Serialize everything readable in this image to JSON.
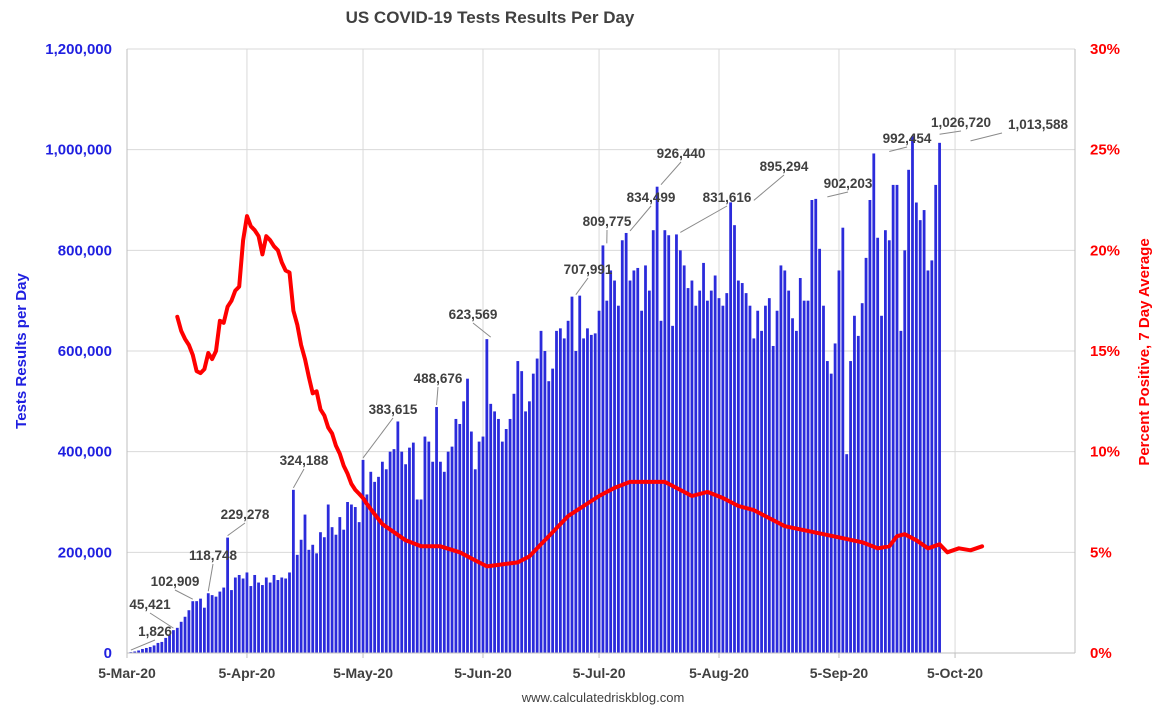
{
  "chart_data": {
    "type": "bar",
    "title": "US COVID-19 Tests Results Per Day",
    "ylabel": "Tests Results per Day",
    "y2label": "Percent Positive, 7 Day Average",
    "source": "www.calculatedriskblog.com",
    "ylim": [
      0,
      1200000
    ],
    "y2lim": [
      0,
      30
    ],
    "x_range": [
      "2020-03-05",
      "2020-11-05"
    ],
    "x_ticks": [
      "5-Mar-20",
      "5-Apr-20",
      "5-May-20",
      "5-Jun-20",
      "5-Jul-20",
      "5-Aug-20",
      "5-Sep-20",
      "5-Oct-20"
    ],
    "y_ticks": [
      "0",
      "200,000",
      "400,000",
      "600,000",
      "800,000",
      "1,000,000",
      "1,200,000"
    ],
    "y2_ticks": [
      "0%",
      "5%",
      "10%",
      "15%",
      "20%",
      "25%",
      "30%"
    ],
    "grid": true,
    "colors": {
      "bars": "#2b2bdb",
      "line": "#ff0000",
      "left_axis": "#1f1fe0",
      "right_axis": "#ff0000"
    },
    "series": [
      {
        "name": "Tests Results per Day",
        "kind": "bar",
        "start_date": "2020-03-06",
        "values": [
          1826,
          3000,
          5000,
          8000,
          10000,
          12000,
          15000,
          20000,
          22000,
          30000,
          36000,
          45421,
          50000,
          62000,
          72000,
          85000,
          102909,
          103000,
          108000,
          90000,
          118748,
          115000,
          112000,
          122000,
          130000,
          229278,
          125000,
          150000,
          155000,
          148000,
          160000,
          133000,
          155000,
          140000,
          135000,
          150000,
          140000,
          155000,
          145000,
          150000,
          148000,
          160000,
          324188,
          195000,
          225000,
          275000,
          205000,
          215000,
          198000,
          240000,
          230000,
          295000,
          250000,
          235000,
          270000,
          245000,
          300000,
          295000,
          290000,
          260000,
          383615,
          315000,
          360000,
          340000,
          350000,
          380000,
          365000,
          400000,
          405000,
          460000,
          400000,
          375000,
          408000,
          418000,
          305000,
          305000,
          430000,
          420000,
          380000,
          488676,
          380000,
          360000,
          400000,
          410000,
          465000,
          455000,
          500000,
          545000,
          440000,
          365000,
          420000,
          430000,
          623569,
          495000,
          480000,
          465000,
          420000,
          445000,
          465000,
          515000,
          580000,
          560000,
          480000,
          500000,
          555000,
          585000,
          640000,
          600000,
          540000,
          565000,
          640000,
          645000,
          625000,
          660000,
          707991,
          600000,
          710000,
          625000,
          645000,
          632000,
          635000,
          680000,
          809775,
          700000,
          760000,
          740000,
          690000,
          820000,
          834499,
          740000,
          760000,
          765000,
          680000,
          770000,
          720000,
          840000,
          926440,
          660000,
          840000,
          830000,
          650000,
          831616,
          800000,
          770000,
          725000,
          740000,
          690000,
          720000,
          775000,
          700000,
          720000,
          750000,
          705000,
          690000,
          715000,
          895294,
          850000,
          740000,
          735000,
          715000,
          690000,
          625000,
          680000,
          640000,
          690000,
          705000,
          610000,
          680000,
          770000,
          760000,
          720000,
          665000,
          640000,
          745000,
          700000,
          700000,
          900000,
          902203,
          803000,
          690000,
          580000,
          555000,
          615000,
          760000,
          845000,
          395000,
          580000,
          670000,
          630000,
          695000,
          785000,
          900000,
          992454,
          825000,
          670000,
          840000,
          820000,
          930000,
          930000,
          640000,
          800000,
          960000,
          1026720,
          895000,
          860000,
          880000,
          760000,
          780000,
          930000,
          1013588
        ]
      },
      {
        "name": "Percent Positive, 7 Day Average",
        "kind": "line",
        "axis": "right",
        "points": [
          [
            "2020-03-18",
            16.7
          ],
          [
            "2020-03-19",
            16.0
          ],
          [
            "2020-03-20",
            15.6
          ],
          [
            "2020-03-21",
            15.3
          ],
          [
            "2020-03-22",
            14.8
          ],
          [
            "2020-03-23",
            14.0
          ],
          [
            "2020-03-24",
            13.9
          ],
          [
            "2020-03-25",
            14.1
          ],
          [
            "2020-03-26",
            14.9
          ],
          [
            "2020-03-27",
            14.6
          ],
          [
            "2020-03-28",
            15.0
          ],
          [
            "2020-03-29",
            16.5
          ],
          [
            "2020-03-30",
            16.4
          ],
          [
            "2020-03-31",
            17.2
          ],
          [
            "2020-04-01",
            17.5
          ],
          [
            "2020-04-02",
            18.0
          ],
          [
            "2020-04-03",
            18.2
          ],
          [
            "2020-04-04",
            20.5
          ],
          [
            "2020-04-05",
            21.7
          ],
          [
            "2020-04-06",
            21.2
          ],
          [
            "2020-04-07",
            21.0
          ],
          [
            "2020-04-08",
            20.7
          ],
          [
            "2020-04-09",
            19.8
          ],
          [
            "2020-04-10",
            20.7
          ],
          [
            "2020-04-11",
            20.5
          ],
          [
            "2020-04-12",
            20.2
          ],
          [
            "2020-04-13",
            20.0
          ],
          [
            "2020-04-14",
            19.4
          ],
          [
            "2020-04-15",
            19.0
          ],
          [
            "2020-04-16",
            18.9
          ],
          [
            "2020-04-17",
            17.0
          ],
          [
            "2020-04-18",
            16.3
          ],
          [
            "2020-04-19",
            15.3
          ],
          [
            "2020-04-20",
            14.6
          ],
          [
            "2020-04-21",
            13.7
          ],
          [
            "2020-04-22",
            12.9
          ],
          [
            "2020-04-23",
            13.0
          ],
          [
            "2020-04-24",
            12.1
          ],
          [
            "2020-04-25",
            11.8
          ],
          [
            "2020-04-26",
            11.2
          ],
          [
            "2020-04-27",
            10.9
          ],
          [
            "2020-04-28",
            10.3
          ],
          [
            "2020-04-29",
            9.9
          ],
          [
            "2020-04-30",
            9.3
          ],
          [
            "2020-05-01",
            8.9
          ],
          [
            "2020-05-02",
            8.4
          ],
          [
            "2020-05-03",
            8.1
          ],
          [
            "2020-05-04",
            7.9
          ],
          [
            "2020-05-05",
            7.7
          ],
          [
            "2020-05-06",
            7.4
          ],
          [
            "2020-05-08",
            6.9
          ],
          [
            "2020-05-10",
            6.4
          ],
          [
            "2020-05-13",
            6.0
          ],
          [
            "2020-05-16",
            5.6
          ],
          [
            "2020-05-20",
            5.3
          ],
          [
            "2020-05-25",
            5.3
          ],
          [
            "2020-05-30",
            5.0
          ],
          [
            "2020-06-03",
            4.6
          ],
          [
            "2020-06-06",
            4.3
          ],
          [
            "2020-06-10",
            4.4
          ],
          [
            "2020-06-14",
            4.5
          ],
          [
            "2020-06-17",
            4.8
          ],
          [
            "2020-06-20",
            5.4
          ],
          [
            "2020-06-23",
            6.0
          ],
          [
            "2020-06-27",
            6.8
          ],
          [
            "2020-07-01",
            7.3
          ],
          [
            "2020-07-05",
            7.8
          ],
          [
            "2020-07-09",
            8.2
          ],
          [
            "2020-07-13",
            8.5
          ],
          [
            "2020-07-18",
            8.5
          ],
          [
            "2020-07-22",
            8.5
          ],
          [
            "2020-07-26",
            8.1
          ],
          [
            "2020-07-29",
            7.8
          ],
          [
            "2020-08-02",
            8.0
          ],
          [
            "2020-08-06",
            7.7
          ],
          [
            "2020-08-10",
            7.3
          ],
          [
            "2020-08-14",
            7.1
          ],
          [
            "2020-08-18",
            6.7
          ],
          [
            "2020-08-22",
            6.3
          ],
          [
            "2020-08-27",
            6.1
          ],
          [
            "2020-09-01",
            5.9
          ],
          [
            "2020-09-06",
            5.7
          ],
          [
            "2020-09-11",
            5.5
          ],
          [
            "2020-09-15",
            5.2
          ],
          [
            "2020-09-18",
            5.3
          ],
          [
            "2020-09-20",
            5.8
          ],
          [
            "2020-09-22",
            5.9
          ],
          [
            "2020-09-25",
            5.6
          ],
          [
            "2020-09-28",
            5.2
          ],
          [
            "2020-10-01",
            5.4
          ],
          [
            "2020-10-03",
            5.0
          ],
          [
            "2020-10-06",
            5.2
          ],
          [
            "2020-10-09",
            5.1
          ],
          [
            "2020-10-12",
            5.3
          ]
        ]
      }
    ],
    "data_labels": [
      {
        "text": "1,826",
        "date": "2020-03-06",
        "value": 1826
      },
      {
        "text": "45,421",
        "date": "2020-03-17",
        "value": 45421
      },
      {
        "text": "102,909",
        "date": "2020-03-22",
        "value": 102909
      },
      {
        "text": "118,748",
        "date": "2020-03-26",
        "value": 118748
      },
      {
        "text": "229,278",
        "date": "2020-03-31",
        "value": 229278
      },
      {
        "text": "324,188",
        "date": "2020-04-17",
        "value": 324188
      },
      {
        "text": "383,615",
        "date": "2020-05-05",
        "value": 383615
      },
      {
        "text": "488,676",
        "date": "2020-05-24",
        "value": 488676
      },
      {
        "text": "623,569",
        "date": "2020-06-07",
        "value": 623569
      },
      {
        "text": "707,991",
        "date": "2020-06-29",
        "value": 707991
      },
      {
        "text": "809,775",
        "date": "2020-07-07",
        "value": 809775
      },
      {
        "text": "834,499",
        "date": "2020-07-13",
        "value": 834499
      },
      {
        "text": "926,440",
        "date": "2020-07-21",
        "value": 926440
      },
      {
        "text": "831,616",
        "date": "2020-07-26",
        "value": 831616
      },
      {
        "text": "895,294",
        "date": "2020-08-14",
        "value": 895294
      },
      {
        "text": "902,203",
        "date": "2020-09-02",
        "value": 902203
      },
      {
        "text": "992,454",
        "date": "2020-09-18",
        "value": 992454
      },
      {
        "text": "1,026,720",
        "date": "2020-10-01",
        "value": 1026720
      },
      {
        "text": "1,013,588",
        "date": "2020-10-09",
        "value": 1013588
      }
    ]
  }
}
